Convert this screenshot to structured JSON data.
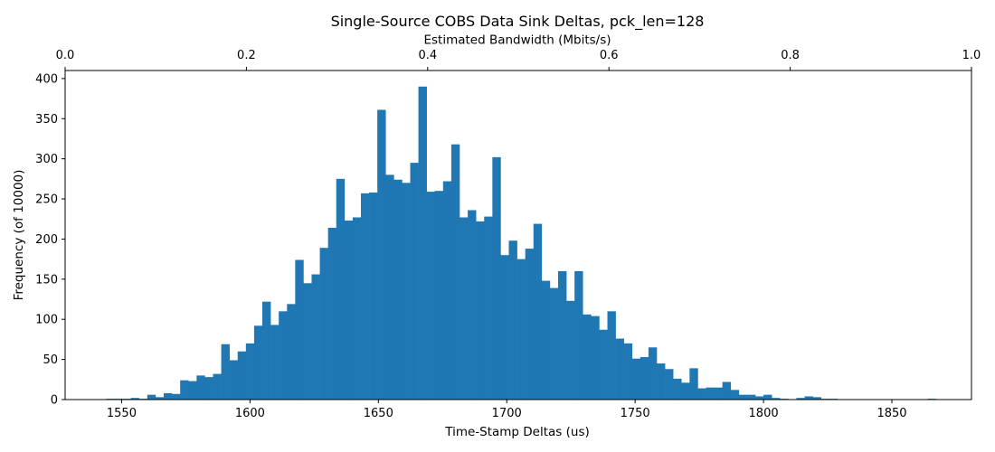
{
  "chart_data": {
    "type": "bar",
    "title": "Single-Source COBS Data Sink Deltas, pck_len=128",
    "xlabel": "Time-Stamp Deltas (us)",
    "ylabel": "Frequency (of 10000)",
    "top_xlabel": "Estimated Bandwidth (Mbits/s)",
    "xlim": [
      1528,
      1881
    ],
    "ylim": [
      0,
      410
    ],
    "x_ticks": [
      "1550",
      "1600",
      "1650",
      "1700",
      "1750",
      "1800",
      "1850"
    ],
    "y_ticks": [
      "0",
      "50",
      "100",
      "150",
      "200",
      "250",
      "300",
      "350",
      "400"
    ],
    "top_ticks": [
      "0.0",
      "0.2",
      "0.4",
      "0.6",
      "0.8",
      "1.0"
    ],
    "top_xlim": [
      0,
      1
    ],
    "bar_color": "#1f77b4",
    "bin_start": 1544.0,
    "bin_width": 3.2,
    "values": [
      1,
      1,
      1,
      2,
      1,
      6,
      3,
      8,
      7,
      24,
      23,
      30,
      28,
      32,
      69,
      49,
      60,
      70,
      92,
      122,
      93,
      110,
      119,
      174,
      145,
      156,
      189,
      214,
      275,
      223,
      227,
      257,
      258,
      361,
      280,
      274,
      270,
      295,
      390,
      259,
      260,
      272,
      318,
      227,
      236,
      222,
      228,
      302,
      180,
      198,
      175,
      188,
      219,
      148,
      139,
      160,
      123,
      160,
      106,
      104,
      87,
      110,
      76,
      70,
      51,
      53,
      65,
      45,
      38,
      26,
      21,
      39,
      14,
      15,
      15,
      22,
      12,
      6,
      6,
      4,
      6,
      2,
      1,
      0,
      2,
      4,
      3,
      1,
      1,
      0,
      0,
      0,
      0,
      0,
      0,
      0,
      0,
      0,
      0,
      0,
      1
    ]
  }
}
